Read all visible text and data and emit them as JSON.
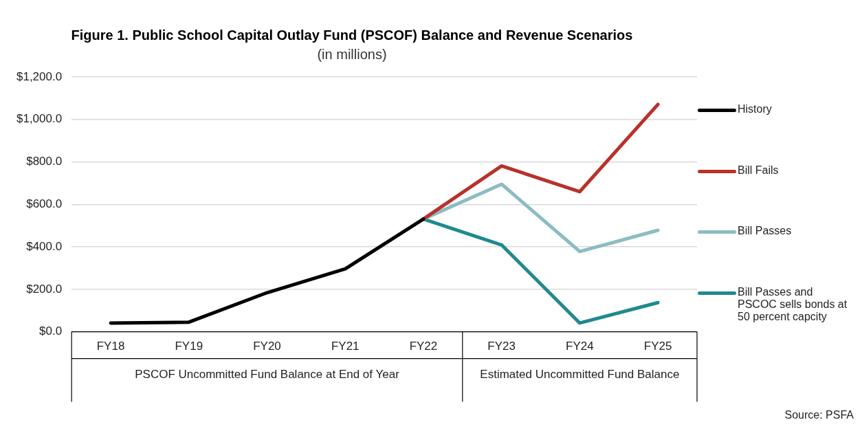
{
  "chart_data": {
    "type": "line",
    "title": "Figure 1. Public School Capital Outlay Fund (PSCOF) Balance and Revenue Scenarios",
    "subtitle": "(in millions)",
    "categories": [
      "FY18",
      "FY19",
      "FY20",
      "FY21",
      "FY22",
      "FY23",
      "FY24",
      "FY25"
    ],
    "series": [
      {
        "name": "History",
        "color": "#000000",
        "values": [
          41,
          45,
          184,
          296,
          531,
          null,
          null,
          null
        ]
      },
      {
        "name": "Bill Fails",
        "color": "#b8312a",
        "values": [
          null,
          null,
          null,
          null,
          531,
          781,
          660,
          1071
        ]
      },
      {
        "name": "Bill Passes",
        "color": "#8bbcc3",
        "values": [
          null,
          null,
          null,
          null,
          531,
          695,
          378,
          478
        ]
      },
      {
        "name": "Bill Passes and PSCOC sells bonds at 50 percent capcity",
        "color": "#1f8a8f",
        "values": [
          null,
          null,
          null,
          null,
          531,
          409,
          41,
          137
        ]
      }
    ],
    "ylim": [
      0,
      1200
    ],
    "yticks": [
      {
        "value": 0,
        "label": "$0.0"
      },
      {
        "value": 200,
        "label": "$200.0"
      },
      {
        "value": 400,
        "label": "$400.0"
      },
      {
        "value": 600,
        "label": "$600.0"
      },
      {
        "value": 800,
        "label": "$800.0"
      },
      {
        "value": 1000,
        "label": "$1,000.0"
      },
      {
        "value": 1200,
        "label": "$1,200.0"
      }
    ],
    "grid": "y",
    "legend": "right",
    "marker": "none",
    "line_style": "solid",
    "annotations": [
      "PSCOF Uncommitted Fund Balance at End of Year",
      "Estimated Uncommitted Fund Balance",
      "Source: PSFA"
    ]
  }
}
